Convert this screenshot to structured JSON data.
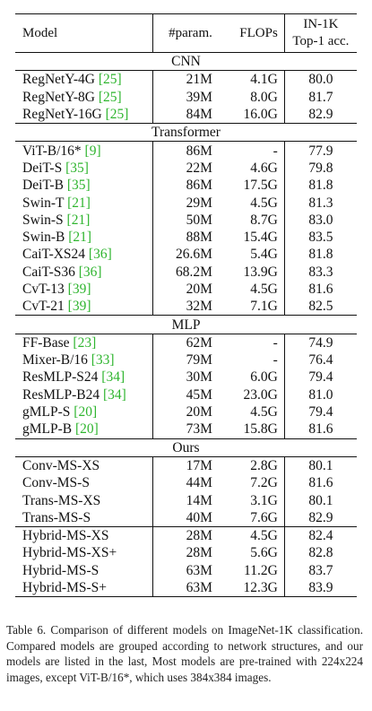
{
  "headers": {
    "model": "Model",
    "params": "#param.",
    "flops": "FLOPs",
    "acc_line1": "IN-1K",
    "acc_line2": "Top-1 acc."
  },
  "groups": [
    {
      "label": "CNN",
      "blocks": [
        [
          {
            "model": "RegNetY-4G",
            "ref": "[25]",
            "params": "21M",
            "flops": "4.1G",
            "acc": "80.0"
          },
          {
            "model": "RegNetY-8G",
            "ref": "[25]",
            "params": "39M",
            "flops": "8.0G",
            "acc": "81.7"
          },
          {
            "model": "RegNetY-16G",
            "ref": "[25]",
            "params": "84M",
            "flops": "16.0G",
            "acc": "82.9"
          }
        ]
      ]
    },
    {
      "label": "Transformer",
      "blocks": [
        [
          {
            "model": "ViT-B/16*",
            "ref": "[9]",
            "params": "86M",
            "flops": "-",
            "acc": "77.9"
          },
          {
            "model": "DeiT-S",
            "ref": "[35]",
            "params": "22M",
            "flops": "4.6G",
            "acc": "79.8"
          },
          {
            "model": "DeiT-B",
            "ref": "[35]",
            "params": "86M",
            "flops": "17.5G",
            "acc": "81.8"
          },
          {
            "model": "Swin-T",
            "ref": "[21]",
            "params": "29M",
            "flops": "4.5G",
            "acc": "81.3"
          },
          {
            "model": "Swin-S",
            "ref": "[21]",
            "params": "50M",
            "flops": "8.7G",
            "acc": "83.0"
          },
          {
            "model": "Swin-B",
            "ref": "[21]",
            "params": "88M",
            "flops": "15.4G",
            "acc": "83.5"
          },
          {
            "model": "CaiT-XS24",
            "ref": "[36]",
            "params": "26.6M",
            "flops": "5.4G",
            "acc": "81.8"
          },
          {
            "model": "CaiT-S36",
            "ref": "[36]",
            "params": "68.2M",
            "flops": "13.9G",
            "acc": "83.3"
          },
          {
            "model": "CvT-13",
            "ref": "[39]",
            "params": "20M",
            "flops": "4.5G",
            "acc": "81.6"
          },
          {
            "model": "CvT-21",
            "ref": "[39]",
            "params": "32M",
            "flops": "7.1G",
            "acc": "82.5"
          }
        ]
      ]
    },
    {
      "label": "MLP",
      "blocks": [
        [
          {
            "model": "FF-Base",
            "ref": "[23]",
            "params": "62M",
            "flops": "-",
            "acc": "74.9"
          },
          {
            "model": "Mixer-B/16",
            "ref": "[33]",
            "params": "79M",
            "flops": "-",
            "acc": "76.4"
          },
          {
            "model": "ResMLP-S24",
            "ref": "[34]",
            "params": "30M",
            "flops": "6.0G",
            "acc": "79.4"
          },
          {
            "model": "ResMLP-B24",
            "ref": "[34]",
            "params": "45M",
            "flops": "23.0G",
            "acc": "81.0"
          },
          {
            "model": "gMLP-S",
            "ref": "[20]",
            "params": "20M",
            "flops": "4.5G",
            "acc": "79.4"
          },
          {
            "model": "gMLP-B",
            "ref": "[20]",
            "params": "73M",
            "flops": "15.8G",
            "acc": "81.6"
          }
        ]
      ]
    },
    {
      "label": "Ours",
      "blocks": [
        [
          {
            "model": "Conv-MS-XS",
            "ref": "",
            "params": "17M",
            "flops": "2.8G",
            "acc": "80.1"
          },
          {
            "model": "Conv-MS-S",
            "ref": "",
            "params": "44M",
            "flops": "7.2G",
            "acc": "81.6"
          },
          {
            "model": "Trans-MS-XS",
            "ref": "",
            "params": "14M",
            "flops": "3.1G",
            "acc": "80.1"
          },
          {
            "model": "Trans-MS-S",
            "ref": "",
            "params": "40M",
            "flops": "7.6G",
            "acc": "82.9"
          }
        ],
        [
          {
            "model": "Hybrid-MS-XS",
            "ref": "",
            "params": "28M",
            "flops": "4.5G",
            "acc": "82.4"
          },
          {
            "model": "Hybrid-MS-XS+",
            "ref": "",
            "params": "28M",
            "flops": "5.6G",
            "acc": "82.8"
          },
          {
            "model": "Hybrid-MS-S",
            "ref": "",
            "params": "63M",
            "flops": "11.2G",
            "acc": "83.7"
          },
          {
            "model": "Hybrid-MS-S+",
            "ref": "",
            "params": "63M",
            "flops": "12.3G",
            "acc": "83.9"
          }
        ]
      ]
    }
  ],
  "caption": "Table 6. Comparison of different models on ImageNet-1K classification. Compared models are grouped according to network structures, and our models are listed in the last, Most models are pre-trained with 224x224 images, except ViT-B/16*, which uses 384x384 images.",
  "colors": {
    "reference": "#2fb52f",
    "text": "#111111"
  }
}
